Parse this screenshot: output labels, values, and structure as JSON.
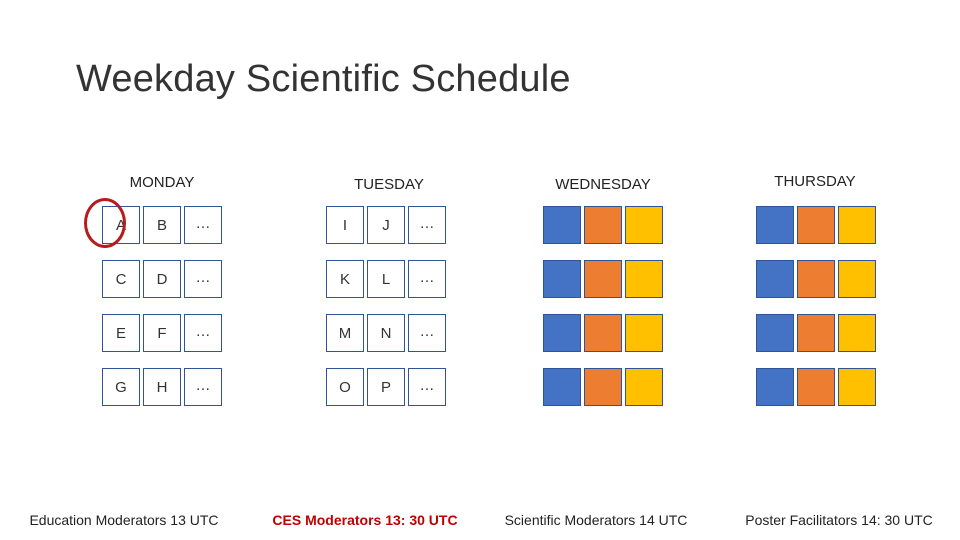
{
  "title": "Weekday Scientific Schedule",
  "colors": {
    "blue": "#4472c4",
    "orange": "#ed7d31",
    "yellow": "#ffc000",
    "highlight": "#b71c1c",
    "accent_text": "#c00000"
  },
  "days": [
    {
      "name": "MONDAY",
      "rows": [
        [
          "A",
          "B",
          "…"
        ],
        [
          "C",
          "D",
          "…"
        ],
        [
          "E",
          "F",
          "…"
        ],
        [
          "G",
          "H",
          "…"
        ]
      ],
      "footer": "Education Moderators 13 UTC"
    },
    {
      "name": "TUESDAY",
      "rows": [
        [
          "I",
          "J",
          "…"
        ],
        [
          "K",
          "L",
          "…"
        ],
        [
          "M",
          "N",
          "…"
        ],
        [
          "O",
          "P",
          "…"
        ]
      ],
      "footer": "CES Moderators 13: 30 UTC"
    },
    {
      "name": "WEDNESDAY",
      "rows": [
        [
          "",
          "",
          ""
        ],
        [
          "",
          "",
          ""
        ],
        [
          "",
          "",
          ""
        ],
        [
          "",
          "",
          ""
        ]
      ],
      "footer": "Scientific Moderators 14 UTC"
    },
    {
      "name": "THURSDAY",
      "rows": [
        [
          "",
          "",
          ""
        ],
        [
          "",
          "",
          ""
        ],
        [
          "",
          "",
          ""
        ],
        [
          "",
          "",
          ""
        ]
      ],
      "footer": "Poster Facilitators 14: 30 UTC"
    }
  ]
}
